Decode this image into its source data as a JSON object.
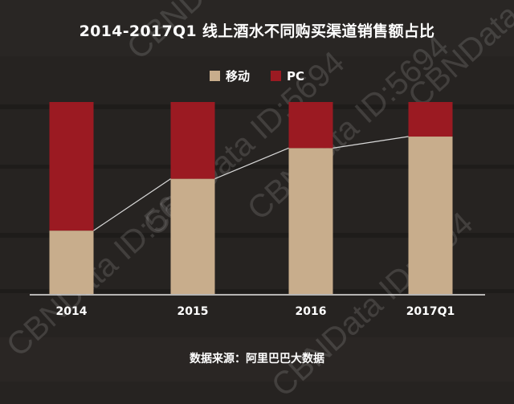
{
  "title": "2014-2017Q1 线上酒水不同购买渠道销售额占比",
  "source": "数据来源：阿里巴巴大数据",
  "watermark": "CBNData ID:5694",
  "colors": {
    "mobile": "#c8ad8c",
    "pc": "#9b1a22",
    "connector": "#d9d9d9",
    "axis": "#e6e6e6"
  },
  "chart_data": {
    "type": "bar",
    "stacked": true,
    "normalized_percent": true,
    "categories": [
      "2014",
      "2015",
      "2016",
      "2017Q1"
    ],
    "series": [
      {
        "name": "移动",
        "values": [
          33,
          60,
          76,
          82
        ]
      },
      {
        "name": "PC",
        "values": [
          67,
          40,
          24,
          18
        ]
      }
    ],
    "ylim": [
      0,
      100
    ],
    "legend": "top-center",
    "grid": false,
    "connector_lines": true
  }
}
